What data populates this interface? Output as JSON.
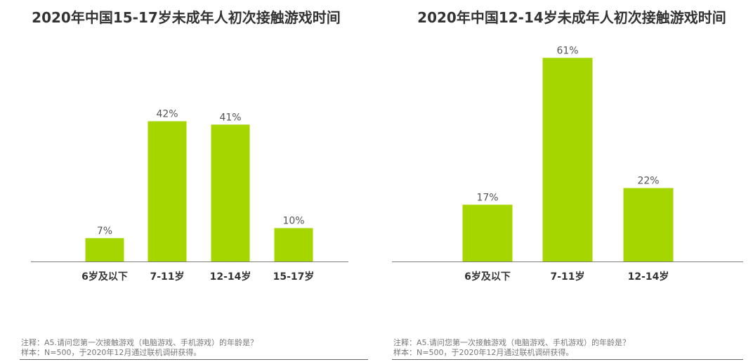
{
  "chart_data": [
    {
      "type": "bar",
      "title": "2020年中国15-17岁未成年人初次接触游戏时间",
      "categories": [
        "6岁及以下",
        "7-11岁",
        "12-14岁",
        "15-17岁"
      ],
      "values": [
        7,
        42,
        41,
        10
      ],
      "value_labels": [
        "7%",
        "42%",
        "41%",
        "10%"
      ],
      "unit": "%",
      "ylim": [
        0,
        70
      ],
      "grid": false,
      "bar_color": "#a6d600"
    },
    {
      "type": "bar",
      "title": "2020年中国12-14岁未成年人初次接触游戏时间",
      "categories": [
        "6岁及以下",
        "7-11岁",
        "12-14岁"
      ],
      "values": [
        17,
        61,
        22
      ],
      "value_labels": [
        "17%",
        "61%",
        "22%"
      ],
      "unit": "%",
      "ylim": [
        0,
        70
      ],
      "grid": false,
      "bar_color": "#a6d600"
    }
  ],
  "notes": [
    {
      "line1": "注释：A5.请问您第一次接触游戏（电脑游戏、手机游戏）的年龄是？",
      "line2": "样本：N=500，于2020年12月通过联机调研获得。"
    },
    {
      "line1": "注释：A5.请问您第一次接触游戏（电脑游戏、手机游戏）的年龄是？",
      "line2": "样本：N=500，于2020年12月通过联机调研获得。"
    }
  ]
}
